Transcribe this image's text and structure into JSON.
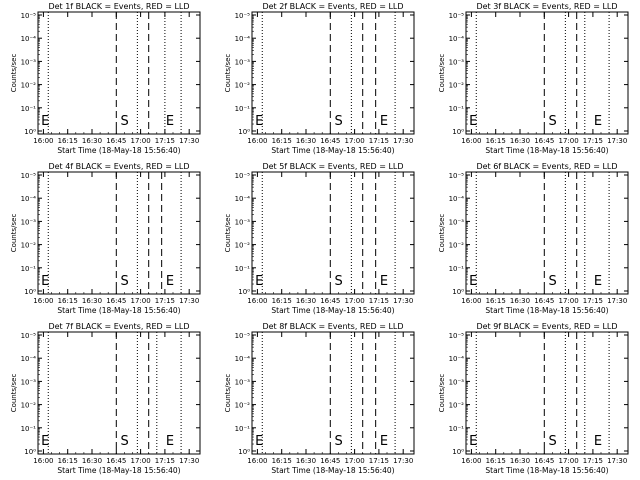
{
  "layout_grid": {
    "rows": 3,
    "cols": 3
  },
  "style": {
    "background": "#ffffff",
    "ink": "#000000"
  },
  "chart_data": [
    {
      "type": "line",
      "title": "Det 1f BLACK = Events, RED = LLD",
      "xlabel": "Start Time (18-May-18 15:56:40)",
      "ylabel": "Counts/sec",
      "x_range_minutes": [
        0,
        100
      ],
      "x_ticks": [
        "16:00",
        "16:15",
        "16:30",
        "16:45",
        "17:00",
        "17:15",
        "17:30"
      ],
      "y_scale": "log",
      "y_ticks": [
        "10⁰",
        "10⁻¹",
        "10⁻²",
        "10⁻³",
        "10⁻⁴",
        "10⁻⁵"
      ],
      "series": [],
      "markers": [
        {
          "label": "E",
          "position": "17:15"
        },
        {
          "label": "S",
          "position": "16:47"
        },
        {
          "label": "E",
          "position": "15:58"
        }
      ],
      "dotted_lines": [
        "16:03",
        "16:58",
        "17:15",
        "17:25"
      ],
      "dashed_lines": [
        "16:45",
        "17:05"
      ]
    },
    {
      "type": "line",
      "title": "Det 2f BLACK = Events, RED = LLD",
      "xlabel": "Start Time (18-May-18 15:56:40)",
      "ylabel": "Counts/sec",
      "x_range_minutes": [
        0,
        100
      ],
      "x_ticks": [
        "16:00",
        "16:15",
        "16:30",
        "16:45",
        "17:00",
        "17:15",
        "17:30"
      ],
      "y_scale": "log",
      "y_ticks": [
        "10⁰",
        "10⁻¹",
        "10⁻²",
        "10⁻³",
        "10⁻⁴",
        "10⁻⁵"
      ],
      "series": [],
      "markers": [
        {
          "label": "E",
          "position": "17:15"
        },
        {
          "label": "S",
          "position": "16:47"
        },
        {
          "label": "E",
          "position": "15:58"
        }
      ],
      "dotted_lines": [
        "16:03",
        "16:58",
        "17:25"
      ],
      "dashed_lines": [
        "16:45",
        "17:05",
        "17:13"
      ]
    },
    {
      "type": "line",
      "title": "Det 3f BLACK = Events, RED = LLD",
      "xlabel": "Start Time (18-May-18 15:56:40)",
      "ylabel": "Counts/sec",
      "x_range_minutes": [
        0,
        100
      ],
      "x_ticks": [
        "16:00",
        "16:15",
        "16:30",
        "16:45",
        "17:00",
        "17:15",
        "17:30"
      ],
      "y_scale": "log",
      "y_ticks": [
        "10⁰",
        "10⁻¹",
        "10⁻²",
        "10⁻³",
        "10⁻⁴",
        "10⁻⁵"
      ],
      "series": [],
      "markers": [
        {
          "label": "E",
          "position": "17:15"
        },
        {
          "label": "S",
          "position": "16:47"
        },
        {
          "label": "E",
          "position": "15:58"
        }
      ],
      "dotted_lines": [
        "16:03",
        "16:58",
        "17:10",
        "17:25"
      ],
      "dashed_lines": [
        "16:45",
        "17:05"
      ]
    },
    {
      "type": "line",
      "title": "Det 4f BLACK = Events, RED = LLD",
      "xlabel": "Start Time (18-May-18 15:56:40)",
      "ylabel": "Counts/sec",
      "x_range_minutes": [
        0,
        100
      ],
      "x_ticks": [
        "16:00",
        "16:15",
        "16:30",
        "16:45",
        "17:00",
        "17:15",
        "17:30"
      ],
      "y_scale": "log",
      "y_ticks": [
        "10⁰",
        "10⁻¹",
        "10⁻²",
        "10⁻³",
        "10⁻⁴",
        "10⁻⁵"
      ],
      "series": [],
      "markers": [
        {
          "label": "E",
          "position": "17:15"
        },
        {
          "label": "S",
          "position": "16:47"
        },
        {
          "label": "E",
          "position": "15:58"
        }
      ],
      "dotted_lines": [
        "16:03",
        "16:58",
        "17:25"
      ],
      "dashed_lines": [
        "16:45",
        "17:05",
        "17:13"
      ]
    },
    {
      "type": "line",
      "title": "Det 5f BLACK = Events, RED = LLD",
      "xlabel": "Start Time (18-May-18 15:56:40)",
      "ylabel": "Counts/sec",
      "x_range_minutes": [
        0,
        100
      ],
      "x_ticks": [
        "16:00",
        "16:15",
        "16:30",
        "16:45",
        "17:00",
        "17:15",
        "17:30"
      ],
      "y_scale": "log",
      "y_ticks": [
        "10⁰",
        "10⁻¹",
        "10⁻²",
        "10⁻³",
        "10⁻⁴",
        "10⁻⁵"
      ],
      "series": [],
      "markers": [
        {
          "label": "E",
          "position": "17:15"
        },
        {
          "label": "S",
          "position": "16:47"
        },
        {
          "label": "E",
          "position": "15:58"
        }
      ],
      "dotted_lines": [
        "16:03",
        "16:58",
        "17:25"
      ],
      "dashed_lines": [
        "16:45",
        "17:05",
        "17:13"
      ]
    },
    {
      "type": "line",
      "title": "Det 6f BLACK = Events, RED = LLD",
      "xlabel": "Start Time (18-May-18 15:56:40)",
      "ylabel": "Counts/sec",
      "x_range_minutes": [
        0,
        100
      ],
      "x_ticks": [
        "16:00",
        "16:15",
        "16:30",
        "16:45",
        "17:00",
        "17:15",
        "17:30"
      ],
      "y_scale": "log",
      "y_ticks": [
        "10⁰",
        "10⁻¹",
        "10⁻²",
        "10⁻³",
        "10⁻⁴",
        "10⁻⁵"
      ],
      "series": [],
      "markers": [
        {
          "label": "E",
          "position": "17:15"
        },
        {
          "label": "S",
          "position": "16:47"
        },
        {
          "label": "E",
          "position": "15:58"
        }
      ],
      "dotted_lines": [
        "16:03",
        "16:58",
        "17:10",
        "17:25"
      ],
      "dashed_lines": [
        "16:45",
        "17:05"
      ]
    },
    {
      "type": "line",
      "title": "Det 7f BLACK = Events, RED = LLD",
      "xlabel": "Start Time (18-May-18 15:56:40)",
      "ylabel": "Counts/sec",
      "x_range_minutes": [
        0,
        100
      ],
      "x_ticks": [
        "16:00",
        "16:15",
        "16:30",
        "16:45",
        "17:00",
        "17:15",
        "17:30"
      ],
      "y_scale": "log",
      "y_ticks": [
        "10⁰",
        "10⁻¹",
        "10⁻²",
        "10⁻³",
        "10⁻⁴",
        "10⁻⁵"
      ],
      "series": [],
      "markers": [
        {
          "label": "E",
          "position": "17:15"
        },
        {
          "label": "S",
          "position": "16:47"
        },
        {
          "label": "E",
          "position": "15:58"
        }
      ],
      "dotted_lines": [
        "16:03",
        "16:58",
        "17:10",
        "17:25"
      ],
      "dashed_lines": [
        "16:45",
        "17:05"
      ]
    },
    {
      "type": "line",
      "title": "Det 8f BLACK = Events, RED = LLD",
      "xlabel": "Start Time (18-May-18 15:56:40)",
      "ylabel": "Counts/sec",
      "x_range_minutes": [
        0,
        100
      ],
      "x_ticks": [
        "16:00",
        "16:15",
        "16:30",
        "16:45",
        "17:00",
        "17:15",
        "17:30"
      ],
      "y_scale": "log",
      "y_ticks": [
        "10⁰",
        "10⁻¹",
        "10⁻²",
        "10⁻³",
        "10⁻⁴",
        "10⁻⁵"
      ],
      "series": [],
      "markers": [
        {
          "label": "E",
          "position": "17:15"
        },
        {
          "label": "S",
          "position": "16:47"
        },
        {
          "label": "E",
          "position": "15:58"
        }
      ],
      "dotted_lines": [
        "16:03",
        "16:58",
        "17:25"
      ],
      "dashed_lines": [
        "16:45",
        "17:05",
        "17:13"
      ]
    },
    {
      "type": "line",
      "title": "Det 9f BLACK = Events, RED = LLD",
      "xlabel": "Start Time (18-May-18 15:56:40)",
      "ylabel": "Counts/sec",
      "x_range_minutes": [
        0,
        100
      ],
      "x_ticks": [
        "16:00",
        "16:15",
        "16:30",
        "16:45",
        "17:00",
        "17:15",
        "17:30"
      ],
      "y_scale": "log",
      "y_ticks": [
        "10⁰",
        "10⁻¹",
        "10⁻²",
        "10⁻³",
        "10⁻⁴",
        "10⁻⁵"
      ],
      "series": [],
      "markers": [
        {
          "label": "E",
          "position": "17:15"
        },
        {
          "label": "S",
          "position": "16:47"
        },
        {
          "label": "E",
          "position": "15:58"
        }
      ],
      "dotted_lines": [
        "16:03",
        "16:58",
        "17:10",
        "17:25"
      ],
      "dashed_lines": [
        "16:45",
        "17:05"
      ]
    }
  ]
}
